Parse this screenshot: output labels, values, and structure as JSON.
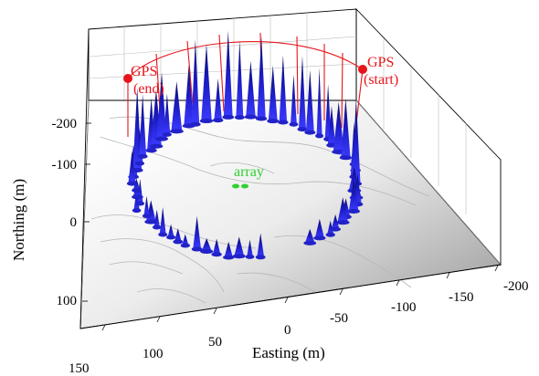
{
  "chart_data": {
    "type": "3d-surface",
    "xlabel": "Easting (m)",
    "ylabel": "Northing (m)",
    "x_ticks": [
      "150",
      "100",
      "50",
      "0",
      "-50",
      "-100",
      "-150",
      "-200"
    ],
    "y_ticks": [
      "-200",
      "-100",
      "0",
      "100"
    ],
    "annotations": {
      "array": "array",
      "gps_start": "GPS\n(start)",
      "gps_end": "GPS\n(end)"
    },
    "colors": {
      "spikes": "#1a1ab8",
      "gps": "#e8141b",
      "array": "#2fd12f",
      "floor_light": "#ffffff",
      "floor_dark": "#9a9a9a"
    },
    "grid": true
  }
}
